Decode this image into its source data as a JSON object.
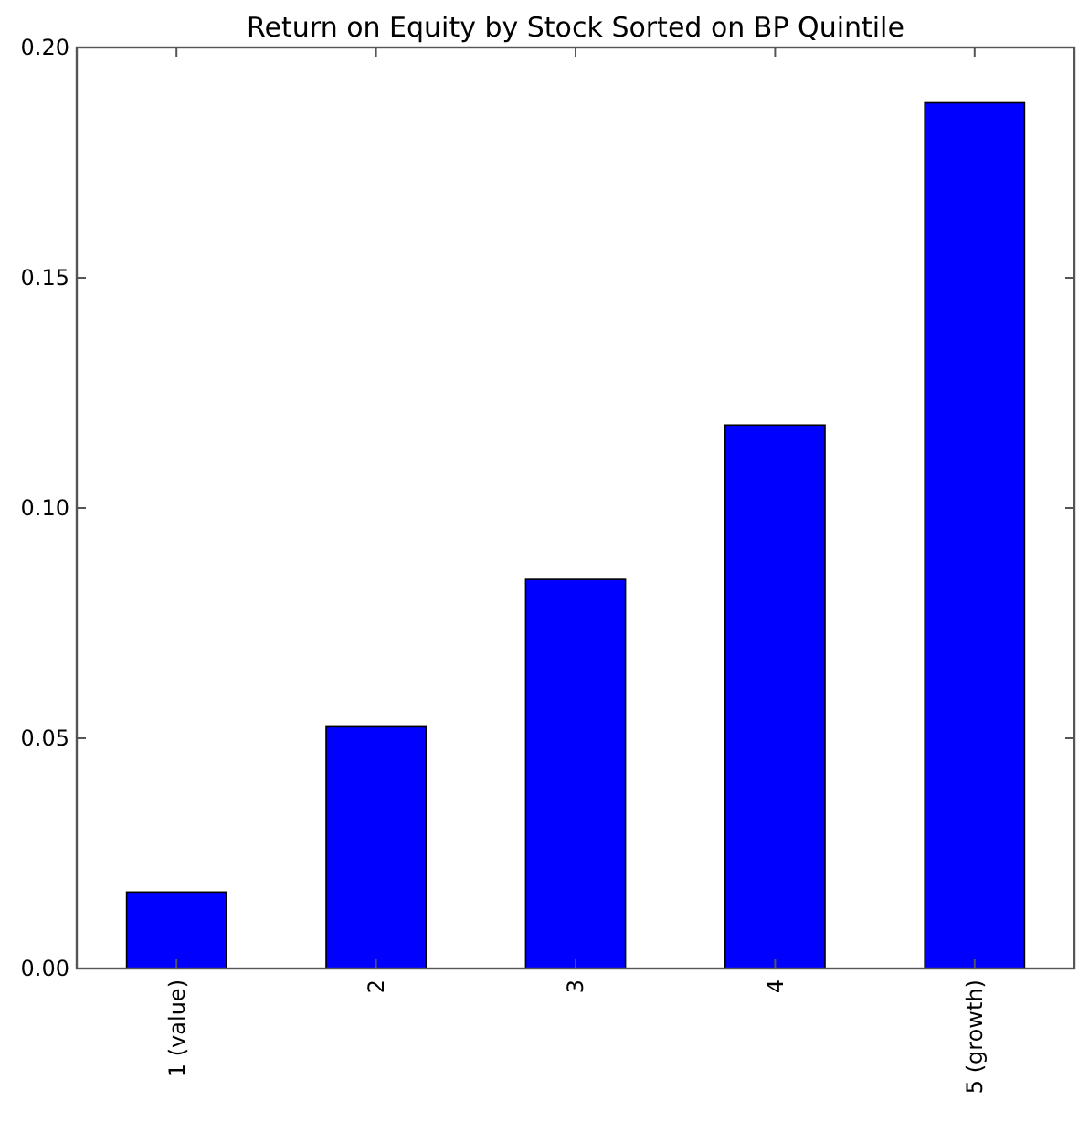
{
  "chart_data": {
    "type": "bar",
    "title": "Return on Equity by Stock Sorted on BP Quintile",
    "categories": [
      "1 (value)",
      "2",
      "3",
      "4",
      "5 (growth)"
    ],
    "values": [
      0.0166,
      0.0525,
      0.0845,
      0.118,
      0.188
    ],
    "color": "#0000ff",
    "ylim": [
      0,
      0.2
    ],
    "yticks": [
      {
        "value": 0,
        "label": "0.00"
      },
      {
        "value": 0.05,
        "label": "0.05"
      },
      {
        "value": 0.1,
        "label": "0.10"
      },
      {
        "value": 0.15,
        "label": "0.15"
      },
      {
        "value": 0.2,
        "label": "0.20"
      }
    ],
    "grid": false
  }
}
